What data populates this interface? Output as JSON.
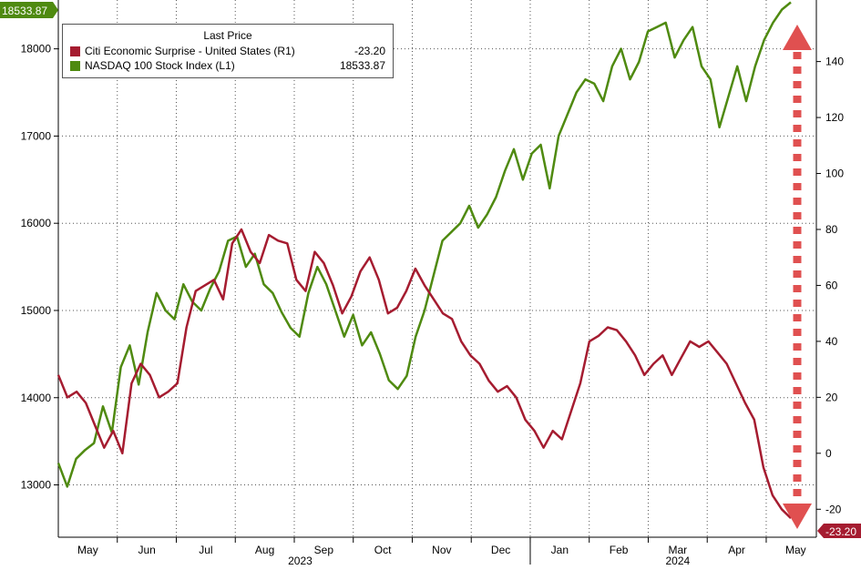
{
  "legend": {
    "title": "Last Price",
    "items": [
      {
        "name": "Citi Economic Surprise - United States  (R1)",
        "value": "-23.20",
        "color": "#a51c30"
      },
      {
        "name": "NASDAQ 100 Stock Index  (L1)",
        "value": "18533.87",
        "color": "#4f8a10"
      }
    ]
  },
  "chart_data": {
    "type": "line",
    "x_axis": {
      "months": [
        "May",
        "Jun",
        "Jul",
        "Aug",
        "Sep",
        "Oct",
        "Nov",
        "Dec",
        "Jan",
        "Feb",
        "Mar",
        "Apr",
        "May"
      ],
      "years": [
        "2023",
        "2024"
      ]
    },
    "left_axis": {
      "ticks": [
        13000,
        14000,
        15000,
        16000,
        17000,
        18000
      ],
      "range": [
        12400,
        18560
      ]
    },
    "right_axis": {
      "ticks": [
        -20,
        0,
        20,
        40,
        60,
        80,
        100,
        120,
        140
      ],
      "range": [
        -30,
        162
      ]
    },
    "last_value_tags": {
      "left": "18533.87",
      "right": "-23.20"
    },
    "series": [
      {
        "name": "NASDAQ 100 Stock Index",
        "axis": "left",
        "color": "#4f8a10",
        "values": [
          13250,
          12980,
          13300,
          13400,
          13480,
          13900,
          13600,
          14350,
          14600,
          14150,
          14750,
          15200,
          15000,
          14900,
          15300,
          15100,
          15000,
          15250,
          15450,
          15800,
          15850,
          15500,
          15650,
          15300,
          15200,
          14980,
          14800,
          14700,
          15200,
          15500,
          15300,
          15000,
          14700,
          14950,
          14600,
          14750,
          14500,
          14200,
          14100,
          14250,
          14700,
          15000,
          15400,
          15800,
          15900,
          16000,
          16200,
          15950,
          16100,
          16300,
          16600,
          16850,
          16500,
          16800,
          16900,
          16400,
          17000,
          17250,
          17500,
          17650,
          17600,
          17400,
          17800,
          18000,
          17650,
          17850,
          18200,
          18250,
          18300,
          17900,
          18100,
          18250,
          17800,
          17650,
          17100,
          17450,
          17800,
          17400,
          17800,
          18100,
          18300,
          18450,
          18534
        ],
        "last_label": "18533.87"
      },
      {
        "name": "Citi Economic Surprise - United States",
        "axis": "right",
        "color": "#a51c30",
        "values": [
          28,
          20,
          22,
          18,
          10,
          2,
          8,
          0,
          25,
          32,
          28,
          20,
          22,
          25,
          45,
          58,
          60,
          62,
          55,
          75,
          80,
          72,
          68,
          78,
          76,
          75,
          62,
          58,
          72,
          68,
          60,
          50,
          56,
          65,
          70,
          62,
          50,
          52,
          58,
          66,
          60,
          55,
          50,
          48,
          40,
          35,
          32,
          26,
          22,
          24,
          20,
          12,
          8,
          2,
          8,
          5,
          15,
          25,
          40,
          42,
          45,
          44,
          40,
          35,
          28,
          32,
          35,
          28,
          34,
          40,
          38,
          40,
          36,
          32,
          25,
          18,
          12,
          -5,
          -15,
          -20,
          -23.2
        ],
        "last_label": "-23.20"
      }
    ]
  }
}
